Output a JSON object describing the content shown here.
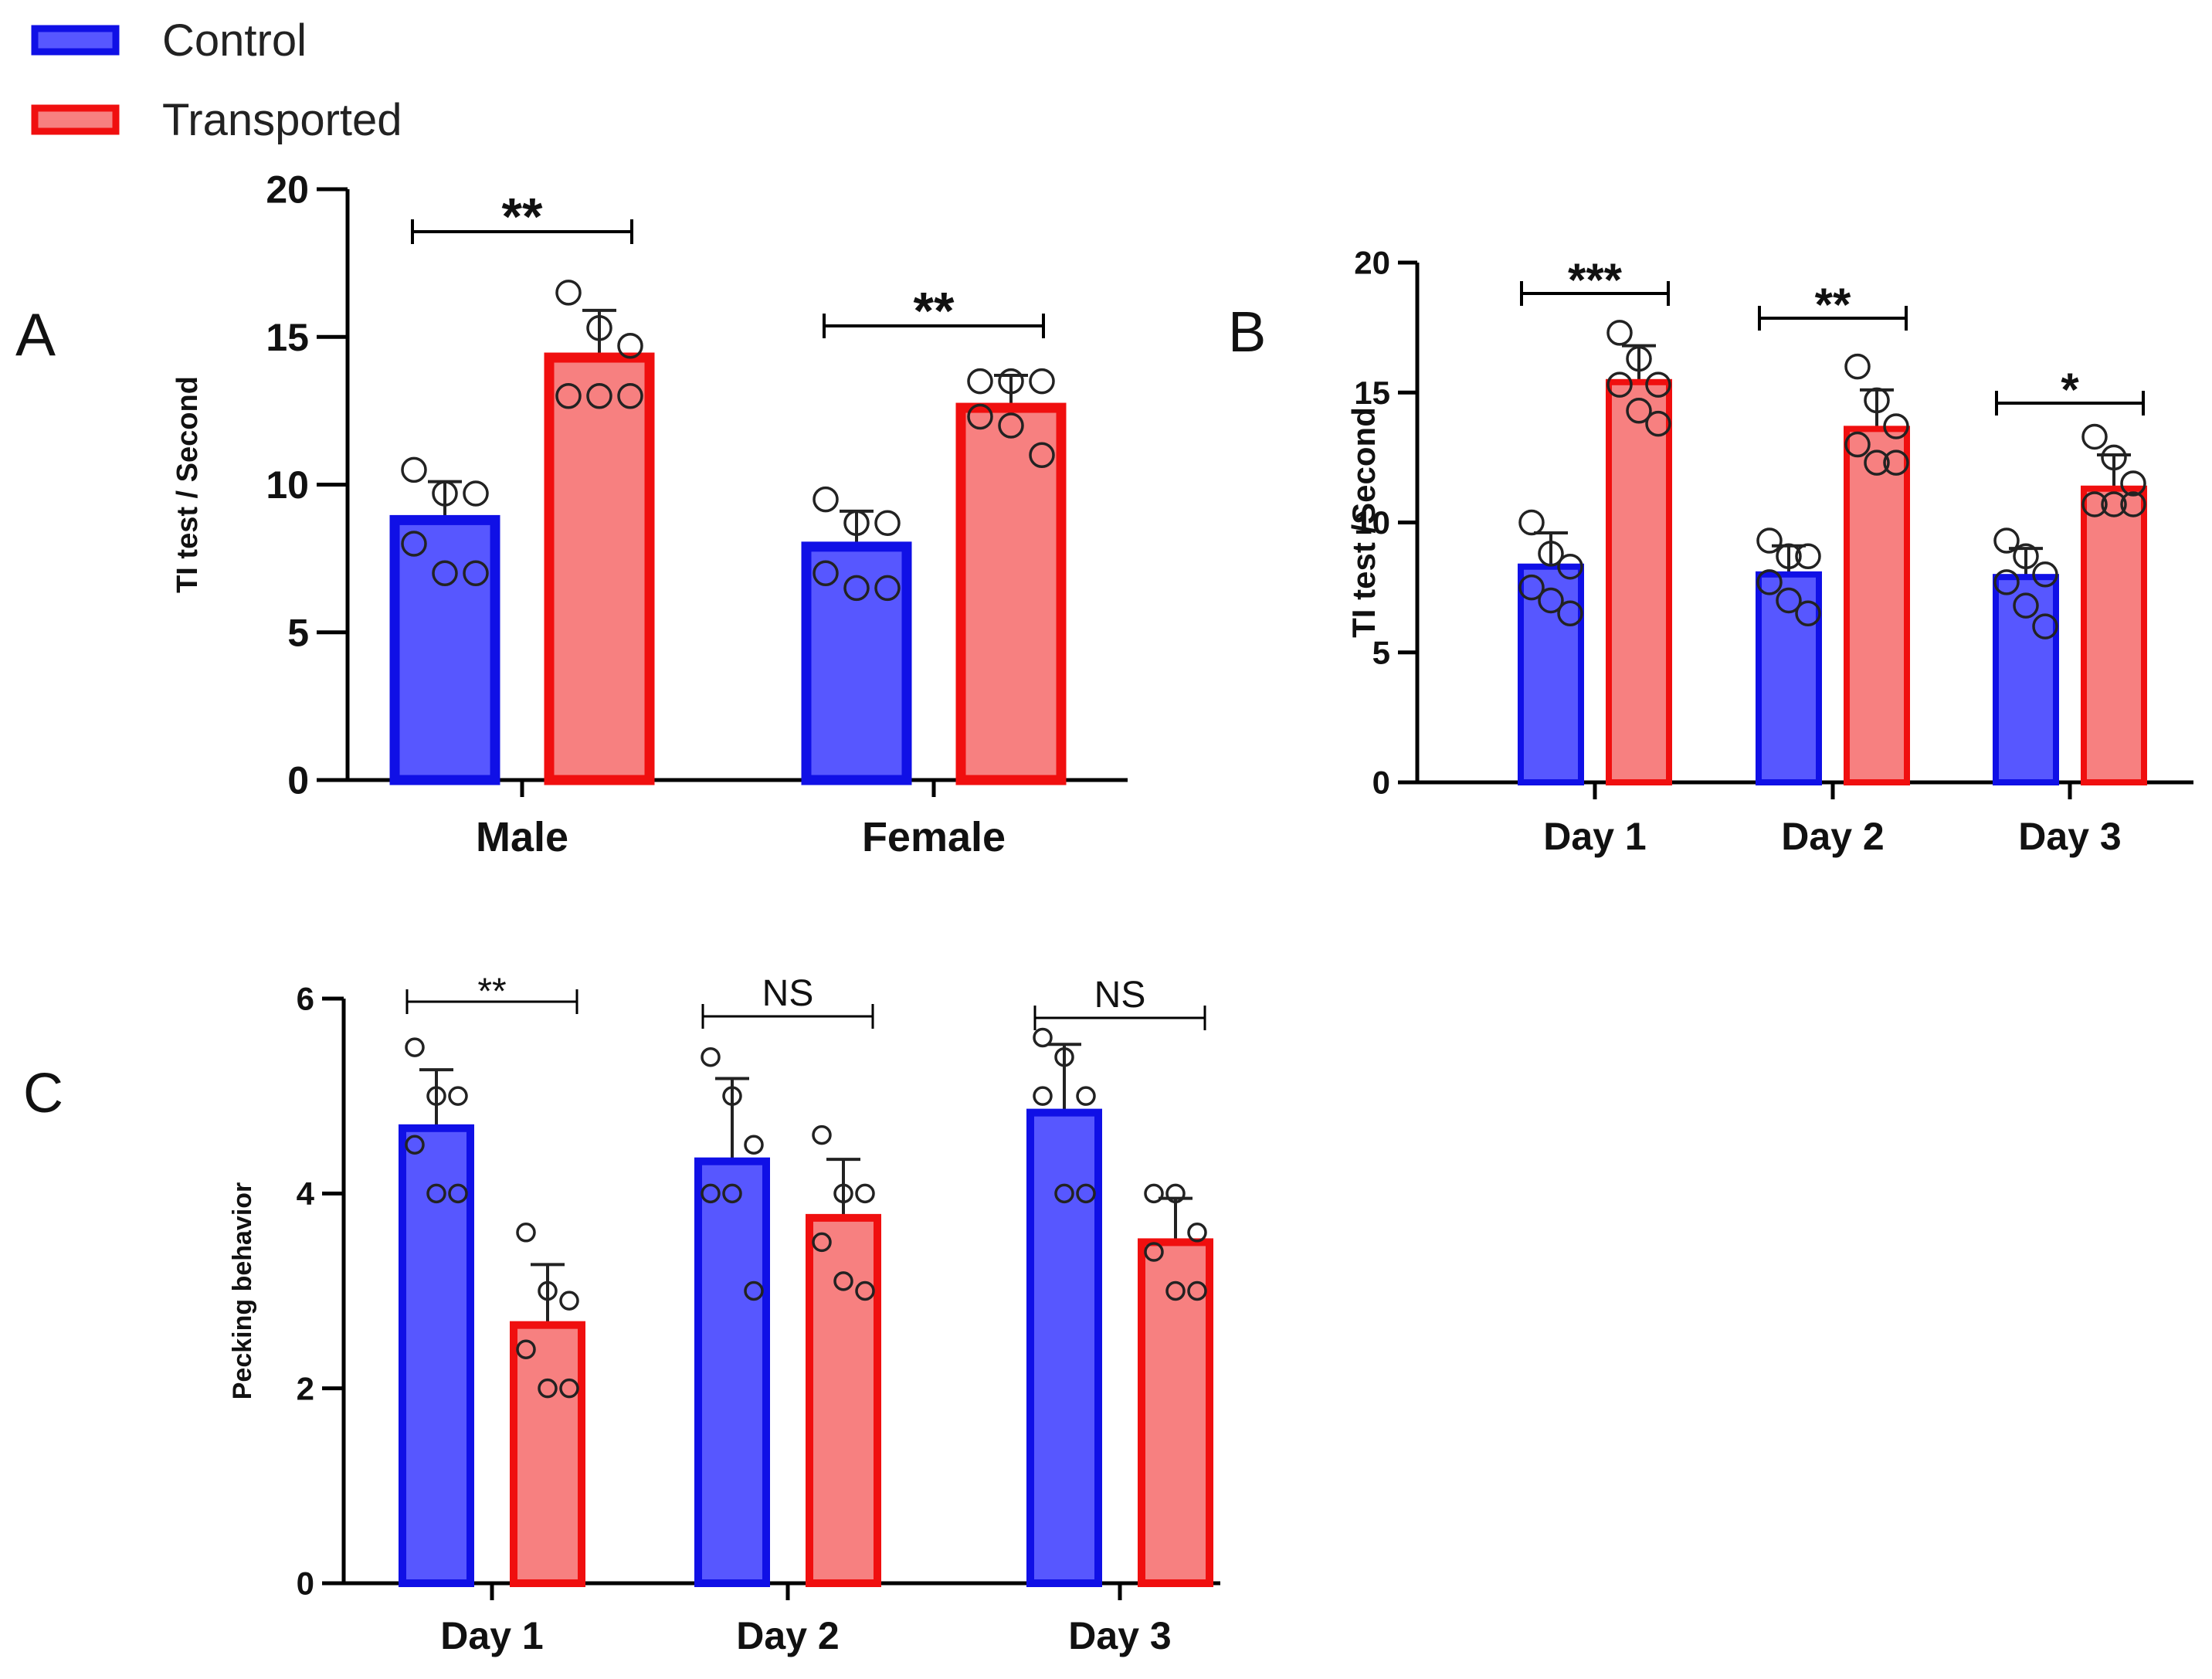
{
  "legend": {
    "position": "top-left",
    "items": [
      {
        "name": "Control",
        "fill": "#5757ff",
        "stroke": "#1010e6"
      },
      {
        "name": "Transported",
        "fill": "#f78080",
        "stroke": "#f00f0f"
      }
    ]
  },
  "chart_data": [
    {
      "panel_label": "A",
      "type": "bar",
      "categories": [
        "Male",
        "Female"
      ],
      "series": [
        {
          "name": "Control",
          "values": [
            8.8,
            7.9
          ],
          "sd": [
            1.3,
            1.2
          ],
          "points": [
            [
              10.5,
              9.7,
              9.7,
              8.0,
              7.0,
              7.0
            ],
            [
              9.5,
              8.7,
              8.7,
              7.0,
              6.5,
              6.5
            ]
          ]
        },
        {
          "name": "Transported",
          "values": [
            14.3,
            12.6
          ],
          "sd": [
            1.6,
            1.1
          ],
          "points": [
            [
              16.5,
              15.3,
              14.7,
              13.0,
              13.0,
              13.0
            ],
            [
              13.5,
              13.5,
              13.5,
              12.3,
              12.0,
              11.0
            ]
          ]
        }
      ],
      "xlabel": "",
      "ylabel": "TI test / Second",
      "ylim": [
        0,
        20
      ],
      "yticks": [
        "0",
        "5",
        "10",
        "15",
        "20"
      ],
      "grid": false,
      "annotations": [
        {
          "text": "**",
          "category": 0
        },
        {
          "text": "**",
          "category": 1
        }
      ]
    },
    {
      "panel_label": "B",
      "type": "bar",
      "categories": [
        "Day 1",
        "Day 2",
        "Day 3"
      ],
      "series": [
        {
          "name": "Control",
          "values": [
            8.3,
            8.0,
            7.9
          ],
          "sd": [
            1.3,
            1.1,
            1.1
          ],
          "points": [
            [
              10.0,
              8.8,
              8.3,
              7.5,
              7.0,
              6.5
            ],
            [
              9.3,
              8.7,
              8.7,
              7.7,
              7.0,
              6.5
            ],
            [
              9.3,
              8.7,
              8.0,
              7.7,
              6.8,
              6.0
            ]
          ]
        },
        {
          "name": "Transported",
          "values": [
            15.4,
            13.6,
            11.3
          ],
          "sd": [
            1.4,
            1.5,
            1.3
          ],
          "points": [
            [
              17.3,
              16.3,
              15.3,
              15.3,
              14.3,
              13.8
            ],
            [
              16.0,
              14.7,
              13.7,
              13.0,
              12.3,
              12.3
            ],
            [
              13.3,
              12.5,
              11.5,
              10.7,
              10.7,
              10.7
            ]
          ]
        }
      ],
      "xlabel": "",
      "ylabel": "TI test /Second",
      "ylim": [
        0,
        20
      ],
      "yticks": [
        "0",
        "5",
        "10",
        "15",
        "20"
      ],
      "grid": false,
      "annotations": [
        {
          "text": "***",
          "category": 0
        },
        {
          "text": "**",
          "category": 1
        },
        {
          "text": "*",
          "category": 2
        }
      ]
    },
    {
      "panel_label": "C",
      "type": "bar",
      "categories": [
        "Day 1",
        "Day 2",
        "Day 3"
      ],
      "series": [
        {
          "name": "Control",
          "values": [
            4.67,
            4.33,
            4.83
          ],
          "sd": [
            0.6,
            0.85,
            0.7
          ],
          "points": [
            [
              5.5,
              5.0,
              5.0,
              4.5,
              4.0,
              4.0
            ],
            [
              5.4,
              5.0,
              4.5,
              4.0,
              4.0,
              3.0
            ],
            [
              5.6,
              5.4,
              5.0,
              5.0,
              4.0,
              4.0
            ]
          ]
        },
        {
          "name": "Transported",
          "values": [
            2.65,
            3.75,
            3.5
          ],
          "sd": [
            0.62,
            0.6,
            0.45
          ],
          "points": [
            [
              3.6,
              3.0,
              2.9,
              2.4,
              2.0,
              2.0
            ],
            [
              4.6,
              4.0,
              4.0,
              3.5,
              3.1,
              3.0
            ],
            [
              4.0,
              4.0,
              3.6,
              3.4,
              3.0,
              3.0
            ]
          ]
        }
      ],
      "xlabel": "",
      "ylabel": "Pecking behavior",
      "ylim": [
        0,
        6
      ],
      "yticks": [
        "0",
        "2",
        "4",
        "6"
      ],
      "grid": false,
      "annotations": [
        {
          "text": "**",
          "category": 0
        },
        {
          "text": "NS",
          "category": 1
        },
        {
          "text": "NS",
          "category": 2
        }
      ]
    }
  ]
}
